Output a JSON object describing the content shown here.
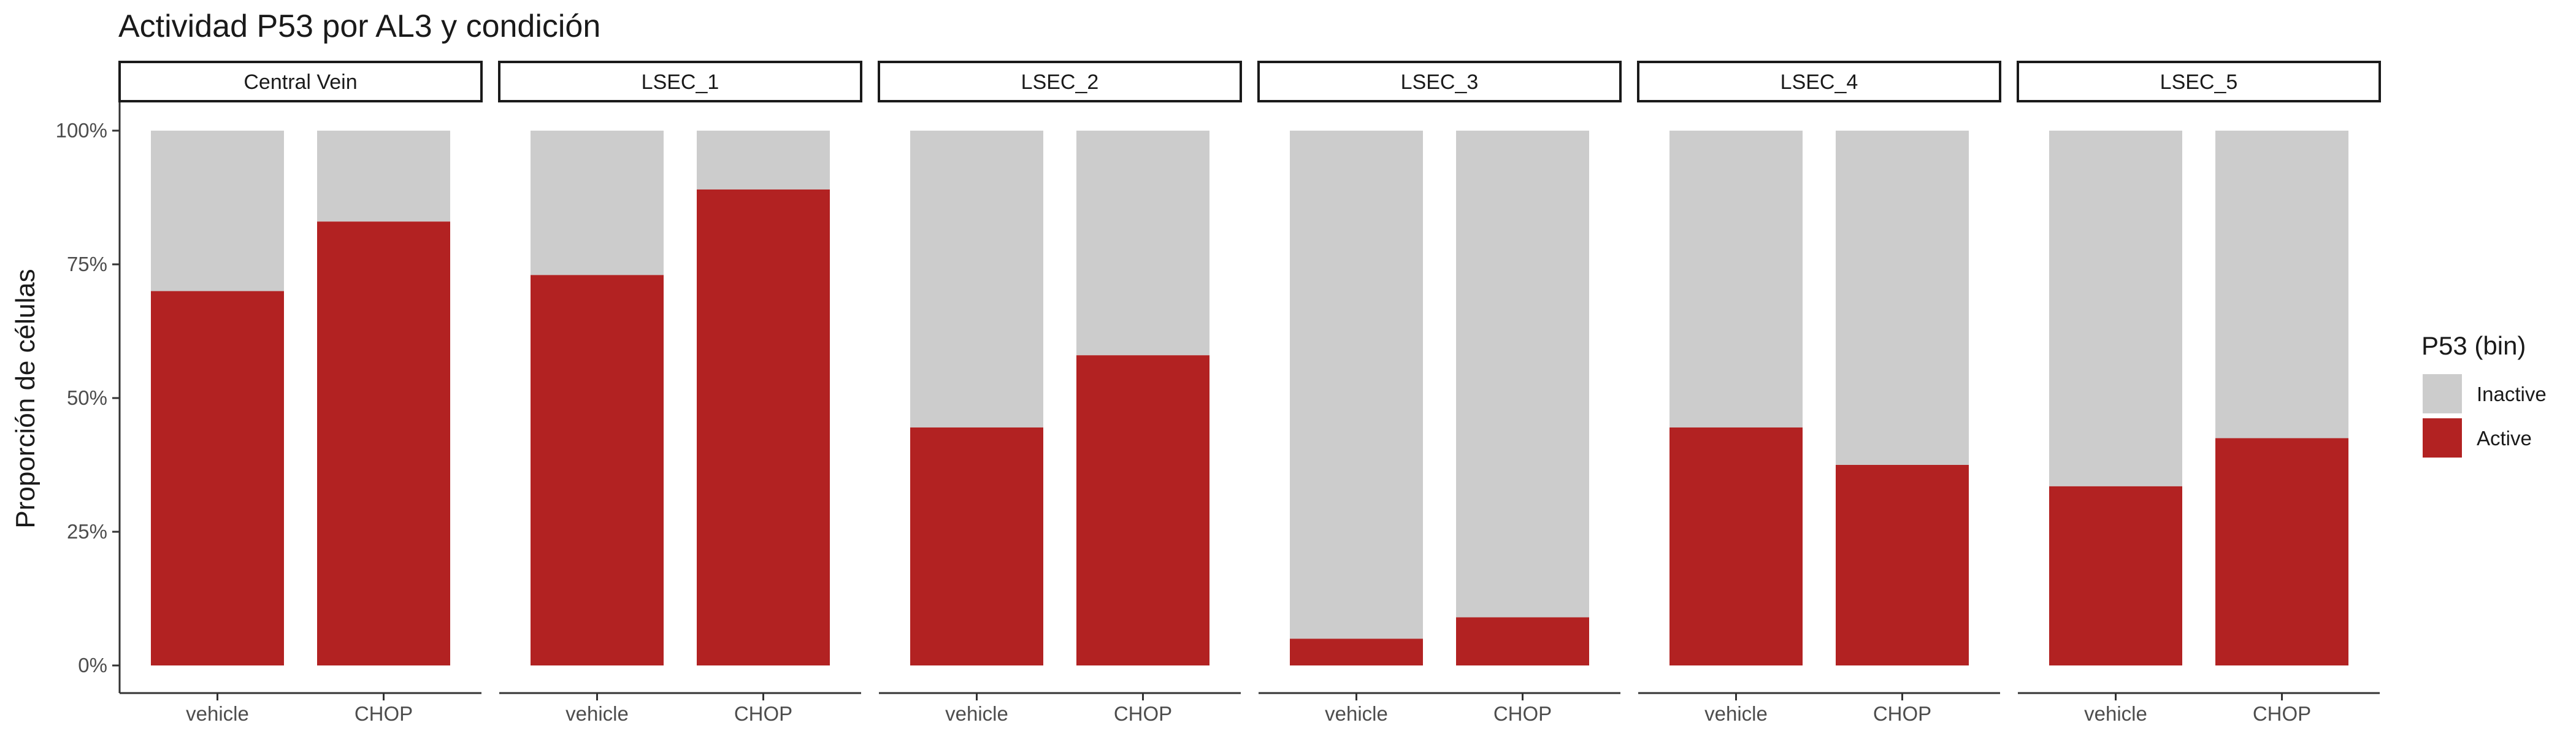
{
  "chart_data": {
    "type": "bar",
    "stacked": true,
    "faceted": true,
    "title": "Actividad P53 por AL3 y condición",
    "ylabel": "Proporción de células",
    "xlabel": "",
    "ylim": [
      0,
      1
    ],
    "y_ticks": [
      {
        "value": 0,
        "label": "0%"
      },
      {
        "value": 0.25,
        "label": "25%"
      },
      {
        "value": 0.5,
        "label": "50%"
      },
      {
        "value": 0.75,
        "label": "75%"
      },
      {
        "value": 1,
        "label": "100%"
      }
    ],
    "categories": [
      "vehicle",
      "CHOP"
    ],
    "legend": {
      "title": "P53 (bin)",
      "position": "right",
      "entries": [
        {
          "label": "Inactive",
          "color": "#cccccc"
        },
        {
          "label": "Active",
          "color": "#b22222"
        }
      ]
    },
    "grid": false,
    "facets": [
      {
        "label": "Central Vein",
        "active": [
          0.7,
          0.83
        ]
      },
      {
        "label": "LSEC_1",
        "active": [
          0.73,
          0.89
        ]
      },
      {
        "label": "LSEC_2",
        "active": [
          0.445,
          0.58
        ]
      },
      {
        "label": "LSEC_3",
        "active": [
          0.05,
          0.09
        ]
      },
      {
        "label": "LSEC_4",
        "active": [
          0.445,
          0.375
        ]
      },
      {
        "label": "LSEC_5",
        "active": [
          0.335,
          0.425
        ]
      }
    ]
  }
}
